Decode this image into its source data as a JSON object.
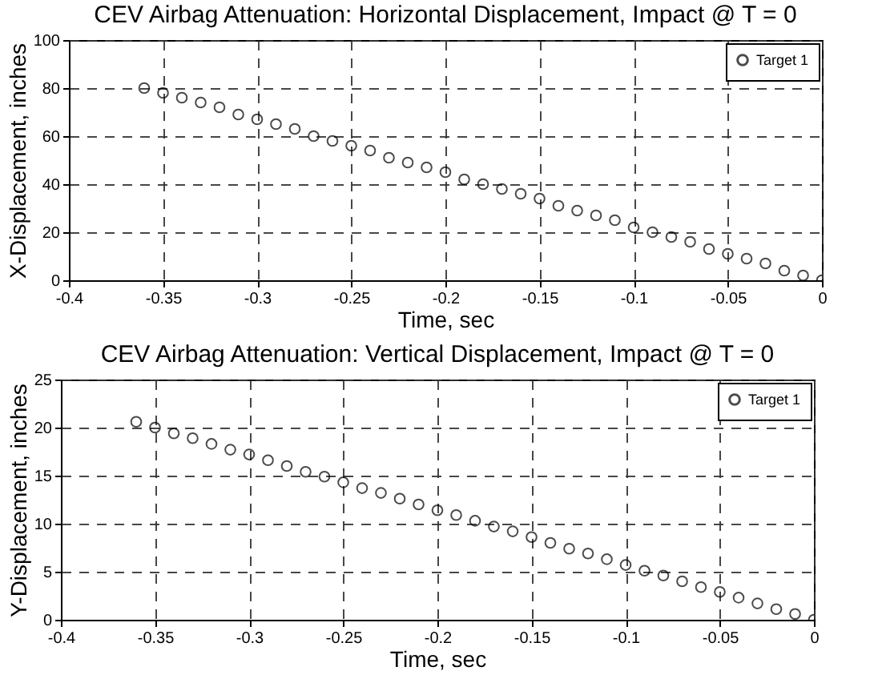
{
  "chart_data": [
    {
      "type": "scatter",
      "title": "CEV Airbag Attenuation: Horizontal Displacement, Impact @ T = 0",
      "xlabel": "Time, sec",
      "ylabel": "X-Displacement, inches",
      "x": [
        -0.36,
        -0.35,
        -0.34,
        -0.33,
        -0.32,
        -0.31,
        -0.3,
        -0.29,
        -0.28,
        -0.27,
        -0.26,
        -0.25,
        -0.24,
        -0.23,
        -0.22,
        -0.21,
        -0.2,
        -0.19,
        -0.18,
        -0.17,
        -0.16,
        -0.15,
        -0.14,
        -0.13,
        -0.12,
        -0.11,
        -0.1,
        -0.09,
        -0.08,
        -0.07,
        -0.06,
        -0.05,
        -0.04,
        -0.03,
        -0.02,
        -0.01,
        0
      ],
      "series": [
        {
          "name": "Target 1",
          "color": "#000000",
          "values": [
            80,
            78,
            76,
            74,
            72,
            69,
            67,
            65,
            63,
            60,
            58,
            56,
            54,
            51,
            49,
            47,
            45,
            42,
            40,
            38,
            36,
            34,
            31,
            29,
            27,
            25,
            22,
            20,
            18,
            16,
            13,
            11,
            9,
            7,
            4,
            2,
            0
          ]
        }
      ],
      "xlim": [
        -0.4,
        0
      ],
      "xticks": [
        -0.4,
        -0.35,
        -0.3,
        -0.25,
        -0.2,
        -0.15,
        -0.1,
        -0.05,
        0
      ],
      "ylim": [
        0,
        100
      ],
      "yticks": [
        0,
        20,
        40,
        60,
        80,
        100
      ],
      "grid": true,
      "legend": "top right",
      "marker": "circle"
    },
    {
      "type": "scatter",
      "title": "CEV Airbag Attenuation: Vertical Displacement, Impact @ T = 0",
      "xlabel": "Time, sec",
      "ylabel": "Y-Displacement, inches",
      "x": [
        -0.36,
        -0.35,
        -0.34,
        -0.33,
        -0.32,
        -0.31,
        -0.3,
        -0.29,
        -0.28,
        -0.27,
        -0.26,
        -0.25,
        -0.24,
        -0.23,
        -0.22,
        -0.21,
        -0.2,
        -0.19,
        -0.18,
        -0.17,
        -0.16,
        -0.15,
        -0.14,
        -0.13,
        -0.12,
        -0.11,
        -0.1,
        -0.09,
        -0.08,
        -0.07,
        -0.06,
        -0.05,
        -0.04,
        -0.03,
        -0.02,
        -0.01,
        0
      ],
      "series": [
        {
          "name": "Target 1",
          "color": "#000000",
          "values": [
            20.6,
            20.0,
            19.4,
            18.9,
            18.3,
            17.7,
            17.2,
            16.6,
            16.0,
            15.4,
            14.9,
            14.3,
            13.7,
            13.2,
            12.6,
            12.0,
            11.4,
            10.9,
            10.3,
            9.7,
            9.2,
            8.6,
            8.0,
            7.4,
            6.9,
            6.3,
            5.7,
            5.1,
            4.6,
            4.0,
            3.4,
            2.9,
            2.3,
            1.7,
            1.1,
            0.6,
            0
          ]
        }
      ],
      "xlim": [
        -0.4,
        0
      ],
      "xticks": [
        -0.4,
        -0.35,
        -0.3,
        -0.25,
        -0.2,
        -0.15,
        -0.1,
        -0.05,
        0
      ],
      "ylim": [
        0,
        25
      ],
      "yticks": [
        0,
        5,
        10,
        15,
        20,
        25
      ],
      "grid": true,
      "legend": "top right",
      "marker": "circle"
    }
  ]
}
